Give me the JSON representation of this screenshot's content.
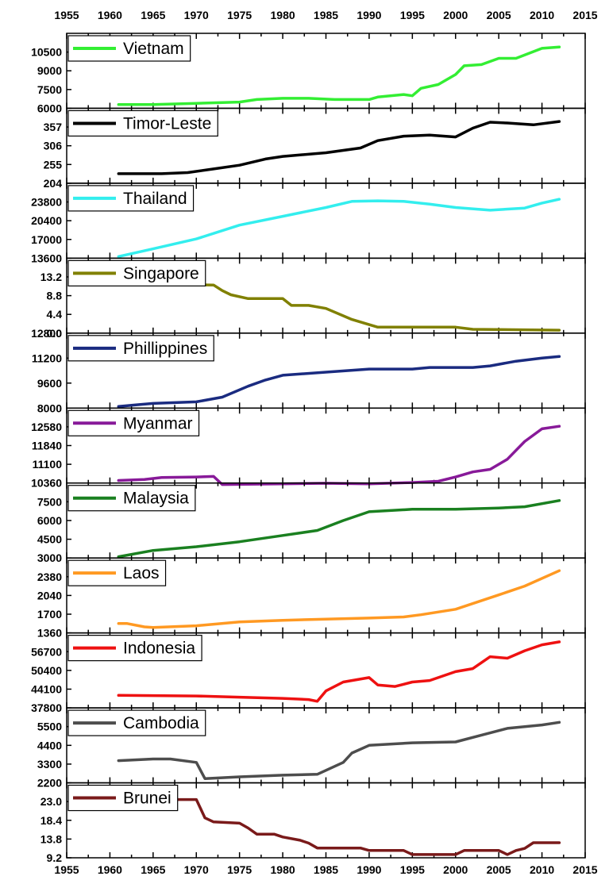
{
  "chart_data": {
    "type": "line",
    "x_axis": {
      "range": [
        1955,
        2015
      ],
      "ticks": [
        1955,
        1960,
        1965,
        1970,
        1975,
        1980,
        1985,
        1990,
        1995,
        2000,
        2005,
        2010,
        2015
      ],
      "tick_labels": [
        "1955",
        "1960",
        "1965",
        "1970",
        "1975",
        "1980",
        "1985",
        "1990",
        "1995",
        "2000",
        "2005",
        "2010",
        "2015"
      ]
    },
    "panels": [
      {
        "name": "Vietnam",
        "color": "#33ee33",
        "ylim": [
          6000,
          12000
        ],
        "yticks": [
          6000,
          7500,
          9000,
          10500
        ],
        "ytick_labels": [
          "6000",
          "7500",
          "9000",
          "10500"
        ],
        "x": [
          1961,
          1965,
          1970,
          1975,
          1977,
          1980,
          1983,
          1986,
          1990,
          1991,
          1994,
          1995,
          1996,
          1998,
          2000,
          2001,
          2003,
          2005,
          2007,
          2010,
          2012
        ],
        "y": [
          6300,
          6300,
          6400,
          6500,
          6700,
          6800,
          6800,
          6700,
          6700,
          6900,
          7100,
          7000,
          7600,
          7900,
          8700,
          9400,
          9500,
          10000,
          10000,
          10800,
          10900
        ]
      },
      {
        "name": "Timor-Leste",
        "color": "#000000",
        "ylim": [
          204,
          408
        ],
        "yticks": [
          204,
          255,
          306,
          357
        ],
        "ytick_labels": [
          "204",
          "255",
          "306",
          "357"
        ],
        "x": [
          1961,
          1966,
          1969,
          1972,
          1975,
          1978,
          1980,
          1985,
          1989,
          1991,
          1994,
          1997,
          2000,
          2002,
          2004,
          2006,
          2009,
          2012
        ],
        "y": [
          230,
          230,
          233,
          243,
          253,
          270,
          277,
          287,
          300,
          320,
          332,
          335,
          330,
          354,
          370,
          368,
          363,
          372
        ]
      },
      {
        "name": "Thailand",
        "color": "#33eeee",
        "ylim": [
          13600,
          27200
        ],
        "yticks": [
          13600,
          17000,
          20400,
          23800
        ],
        "ytick_labels": [
          "13600",
          "17000",
          "20400",
          "23800"
        ],
        "x": [
          1961,
          1965,
          1970,
          1975,
          1980,
          1985,
          1988,
          1991,
          1994,
          1997,
          2000,
          2004,
          2008,
          2010,
          2012
        ],
        "y": [
          13900,
          15300,
          17100,
          19600,
          21200,
          22800,
          23900,
          24000,
          23900,
          23400,
          22800,
          22300,
          22700,
          23600,
          24300
        ]
      },
      {
        "name": "Singapore",
        "color": "#808000",
        "ylim": [
          0,
          17.6
        ],
        "yticks": [
          0,
          4.4,
          8.8,
          13.2
        ],
        "ytick_labels": [
          "0.0",
          "4.4",
          "8.8",
          "13.2"
        ],
        "x": [
          1961,
          1972,
          1973,
          1974,
          1976,
          1980,
          1981,
          1983,
          1985,
          1988,
          1990,
          1991,
          2000,
          2002,
          2012
        ],
        "y": [
          11.5,
          11.3,
          10,
          9,
          8.1,
          8.1,
          6.5,
          6.5,
          5.8,
          3.2,
          2,
          1.4,
          1.4,
          0.9,
          0.7
        ]
      },
      {
        "name": "Phillippines",
        "color": "#1a2b80",
        "ylim": [
          8000,
          12800
        ],
        "yticks": [
          8000,
          9600,
          11200,
          12800
        ],
        "ytick_labels": [
          "8000",
          "9600",
          "11200",
          "12800"
        ],
        "x": [
          1961,
          1963,
          1965,
          1970,
          1973,
          1976,
          1978,
          1980,
          1985,
          1990,
          1995,
          1997,
          2002,
          2004,
          2007,
          2010,
          2012
        ],
        "y": [
          8100,
          8200,
          8300,
          8400,
          8700,
          9400,
          9800,
          10100,
          10300,
          10500,
          10500,
          10600,
          10600,
          10700,
          11000,
          11200,
          11300
        ]
      },
      {
        "name": "Myanmar",
        "color": "#881a99",
        "ylim": [
          10360,
          13320
        ],
        "yticks": [
          10360,
          11100,
          11840,
          12580
        ],
        "ytick_labels": [
          "10360",
          "11100",
          "11840",
          "12580"
        ],
        "x": [
          1961,
          1964,
          1966,
          1970,
          1972,
          1973,
          1980,
          1985,
          1990,
          1995,
          1998,
          2000,
          2002,
          2004,
          2006,
          2008,
          2010,
          2012
        ],
        "y": [
          10460,
          10500,
          10580,
          10600,
          10620,
          10300,
          10330,
          10350,
          10330,
          10380,
          10430,
          10600,
          10800,
          10900,
          11300,
          12000,
          12500,
          12600
        ]
      },
      {
        "name": "Malaysia",
        "color": "#1a8020",
        "ylim": [
          3000,
          9000
        ],
        "yticks": [
          3000,
          4500,
          6000,
          7500
        ],
        "ytick_labels": [
          "3000",
          "4500",
          "6000",
          "7500"
        ],
        "x": [
          1961,
          1965,
          1970,
          1975,
          1980,
          1984,
          1987,
          1990,
          1995,
          2000,
          2005,
          2008,
          2012
        ],
        "y": [
          3100,
          3600,
          3900,
          4300,
          4800,
          5200,
          6000,
          6700,
          6900,
          6900,
          7000,
          7100,
          7600
        ]
      },
      {
        "name": "Laos",
        "color": "#ff9922",
        "ylim": [
          1360,
          2720
        ],
        "yticks": [
          1360,
          1700,
          2040,
          2380
        ],
        "ytick_labels": [
          "1360",
          "1700",
          "2040",
          "2380"
        ],
        "x": [
          1961,
          1962,
          1964,
          1965,
          1970,
          1975,
          1980,
          1985,
          1990,
          1994,
          1996,
          2000,
          2005,
          2008,
          2012
        ],
        "y": [
          1530,
          1530,
          1470,
          1460,
          1490,
          1560,
          1590,
          1610,
          1630,
          1650,
          1690,
          1790,
          2050,
          2210,
          2490
        ]
      },
      {
        "name": "Indonesia",
        "color": "#ee1111",
        "ylim": [
          37800,
          63000
        ],
        "yticks": [
          37800,
          44100,
          50400,
          56700
        ],
        "ytick_labels": [
          "37800",
          "44100",
          "50400",
          "56700"
        ],
        "x": [
          1961,
          1970,
          1975,
          1980,
          1983,
          1984,
          1985,
          1987,
          1990,
          1991,
          1993,
          1995,
          1997,
          2000,
          2002,
          2004,
          2006,
          2008,
          2010,
          2012
        ],
        "y": [
          42000,
          41800,
          41400,
          41000,
          40600,
          40000,
          43500,
          46500,
          48000,
          45500,
          45000,
          46500,
          47000,
          50000,
          51000,
          55000,
          54500,
          57000,
          59000,
          60000
        ]
      },
      {
        "name": "Cambodia",
        "color": "#4d4d4d",
        "ylim": [
          2200,
          6600
        ],
        "yticks": [
          2200,
          3300,
          4400,
          5500
        ],
        "ytick_labels": [
          "2200",
          "3300",
          "4400",
          "5500"
        ],
        "x": [
          1961,
          1965,
          1967,
          1970,
          1971,
          1975,
          1980,
          1984,
          1987,
          1988,
          1990,
          1995,
          2000,
          2003,
          2006,
          2010,
          2012
        ],
        "y": [
          3500,
          3600,
          3600,
          3400,
          2450,
          2550,
          2650,
          2700,
          3400,
          3950,
          4400,
          4550,
          4600,
          5000,
          5400,
          5600,
          5750
        ]
      },
      {
        "name": "Brunei",
        "color": "#7a1a1a",
        "ylim": [
          9.2,
          27.6
        ],
        "yticks": [
          9.2,
          13.8,
          18.4,
          23.0
        ],
        "ytick_labels": [
          "9.2",
          "13.8",
          "18.4",
          "23.0"
        ],
        "x": [
          1961,
          1970,
          1971,
          1972,
          1975,
          1976,
          1977,
          1979,
          1980,
          1982,
          1983,
          1984,
          1989,
          1990,
          1994,
          1995,
          2000,
          2001,
          2005,
          2006,
          2007,
          2008,
          2009,
          2012
        ],
        "y": [
          23.5,
          23.5,
          19,
          18,
          17.7,
          16.5,
          15,
          15,
          14.3,
          13.5,
          12.8,
          11.6,
          11.6,
          11,
          11,
          10,
          10,
          11,
          11,
          10,
          11,
          11.5,
          12.9,
          12.9
        ]
      }
    ]
  }
}
